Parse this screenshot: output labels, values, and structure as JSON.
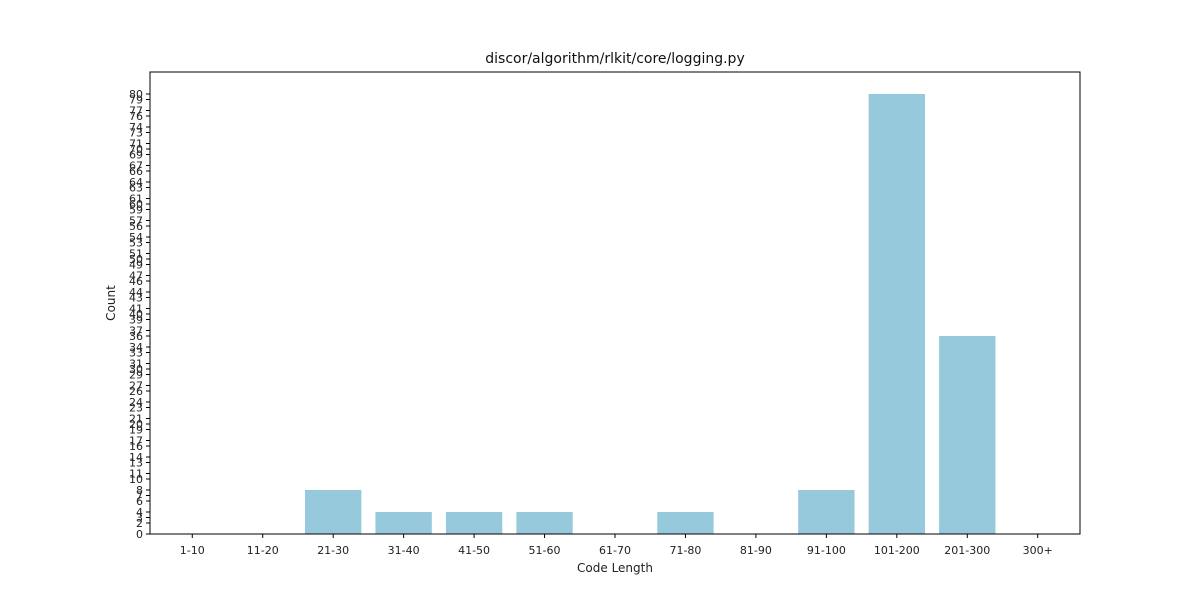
{
  "chart_data": {
    "type": "bar",
    "title": "discor/algorithm/rlkit/core/logging.py",
    "xlabel": "Code Length",
    "ylabel": "Count",
    "categories": [
      "1-10",
      "11-20",
      "21-30",
      "31-40",
      "41-50",
      "51-60",
      "61-70",
      "71-80",
      "81-90",
      "91-100",
      "101-200",
      "201-300",
      "300+"
    ],
    "values": [
      0,
      0,
      8,
      4,
      4,
      4,
      0,
      4,
      0,
      8,
      80,
      36,
      0
    ],
    "ylim": [
      0,
      84
    ],
    "yticks": [
      0,
      2,
      3,
      4,
      6,
      7,
      8,
      10,
      11,
      13,
      14,
      16,
      17,
      19,
      20,
      21,
      23,
      24,
      26,
      27,
      29,
      30,
      31,
      33,
      34,
      36,
      37,
      39,
      40,
      41,
      43,
      44,
      46,
      47,
      49,
      50,
      51,
      53,
      54,
      56,
      57,
      59,
      60,
      61,
      63,
      64,
      66,
      67,
      69,
      70,
      71,
      73,
      74,
      76,
      77,
      79,
      80
    ],
    "bar_color": "#96c9dc",
    "grid": false
  }
}
